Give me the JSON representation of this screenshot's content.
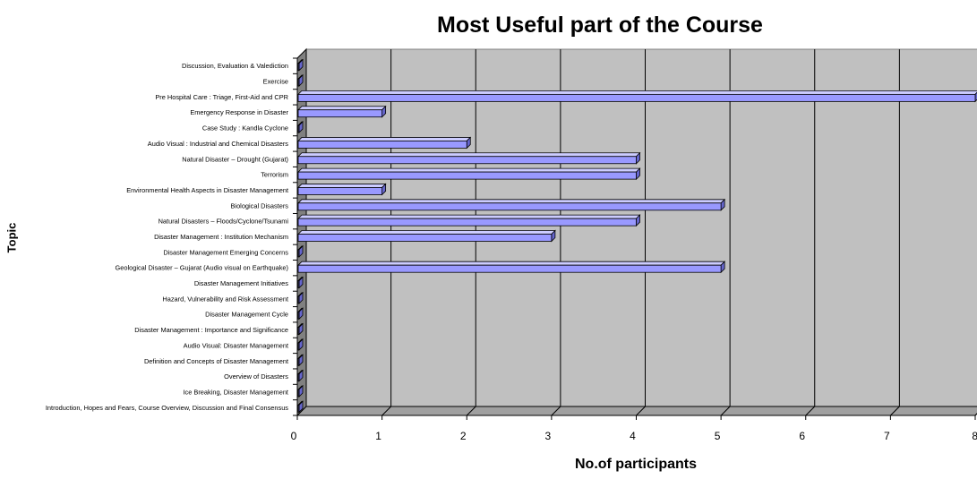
{
  "chart_data": {
    "type": "bar",
    "orientation": "horizontal",
    "title": "Most Useful part of the Course",
    "xlabel": "No.of participants",
    "ylabel": "Topic",
    "xlim": [
      0,
      8
    ],
    "xticks": [
      "0",
      "1",
      "2",
      "3",
      "4",
      "5",
      "6",
      "7",
      "8"
    ],
    "grid": true,
    "bar_color": "#9999ff",
    "plot_background": "#c0c0c0",
    "categories": [
      "Introduction, Hopes and Fears, Course Overview, Discussion and Final Consensus",
      "Ice Breaking, Disaster Management",
      "Overview of Disasters",
      "Definition and Concepts of Disaster Management",
      "Audio Visual: Disaster Management",
      "Disaster Management : Importance and Significance",
      "Disaster Management Cycle",
      "Hazard, Vulnerability and Risk Assessment",
      "Disaster Management Initiatives",
      "Geological Disaster – Gujarat (Audio visual on Earthquake)",
      "Disaster Management Emerging Concerns",
      "Disaster Management : Institution Mechanism",
      "Natural Disasters – Floods/Cyclone/Tsunami",
      "Biological Disasters",
      "Environmental Health Aspects in Disaster Management",
      "Terrorism",
      "Natural Disaster – Drought (Gujarat)",
      "Audio Visual : Industrial and Chemical Disasters",
      "Case Study : Kandla Cyclone",
      "Emergency Response in Disaster",
      "Pre Hospital Care : Triage, First-Aid and CPR",
      "Exercise",
      "Discussion, Evaluation & Valediction"
    ],
    "values": [
      0,
      0,
      0,
      0,
      0,
      0,
      0,
      0,
      0,
      5,
      0,
      3,
      4,
      5,
      1,
      4,
      4,
      2,
      0,
      1,
      8,
      0,
      0
    ]
  }
}
